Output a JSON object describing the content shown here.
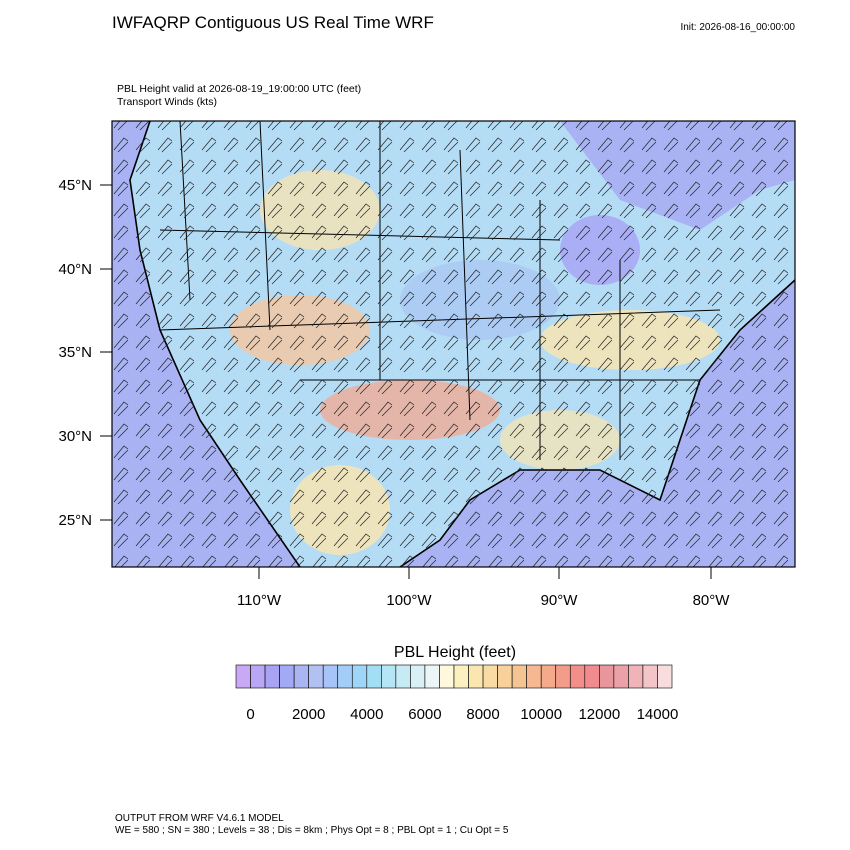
{
  "header": {
    "title": "IWFAQRP Contiguous US Real Time WRF",
    "init": "Init: 2026-08-16_00:00:00"
  },
  "map": {
    "field_label": "PBL Height valid at 2026-08-19_19:00:00 UTC   (feet)",
    "overlay_label": "Transport Winds   (kts)",
    "lat_labels": [
      "45°N",
      "40°N",
      "35°N",
      "30°N",
      "25°N"
    ],
    "lon_labels": [
      "110°W",
      "100°W",
      "90°W",
      "80°W"
    ]
  },
  "colorbar": {
    "title": "PBL Height  (feet)",
    "labels": [
      "0",
      "2000",
      "4000",
      "6000",
      "8000",
      "10000",
      "12000",
      "14000"
    ],
    "colors": [
      "#c9a8f5",
      "#b9a6f5",
      "#a8a3f5",
      "#a2aaf5",
      "#a9b6f2",
      "#b1c2f2",
      "#a6c4f7",
      "#a3cdf7",
      "#9fd6f7",
      "#a2dff5",
      "#b5e6f5",
      "#c6ebf5",
      "#d9f0f7",
      "#ecf6f7",
      "#fff8dc",
      "#fdf0c0",
      "#fbe6b0",
      "#f9dca5",
      "#f7d09a",
      "#f5c493",
      "#f5b890",
      "#f5aa8c",
      "#f49c8a",
      "#f48e8a",
      "#f08c90",
      "#e9959c",
      "#eba1a7",
      "#efb3b8",
      "#f3c5c8",
      "#f8dcde"
    ]
  },
  "footer": {
    "line1": "OUTPUT FROM WRF V4.6.1 MODEL",
    "line2": "WE = 580 ; SN = 380 ; Levels = 38 ; Dis = 8km ; Phys Opt = 8 ; PBL Opt = 1 ; Cu Opt = 5"
  }
}
